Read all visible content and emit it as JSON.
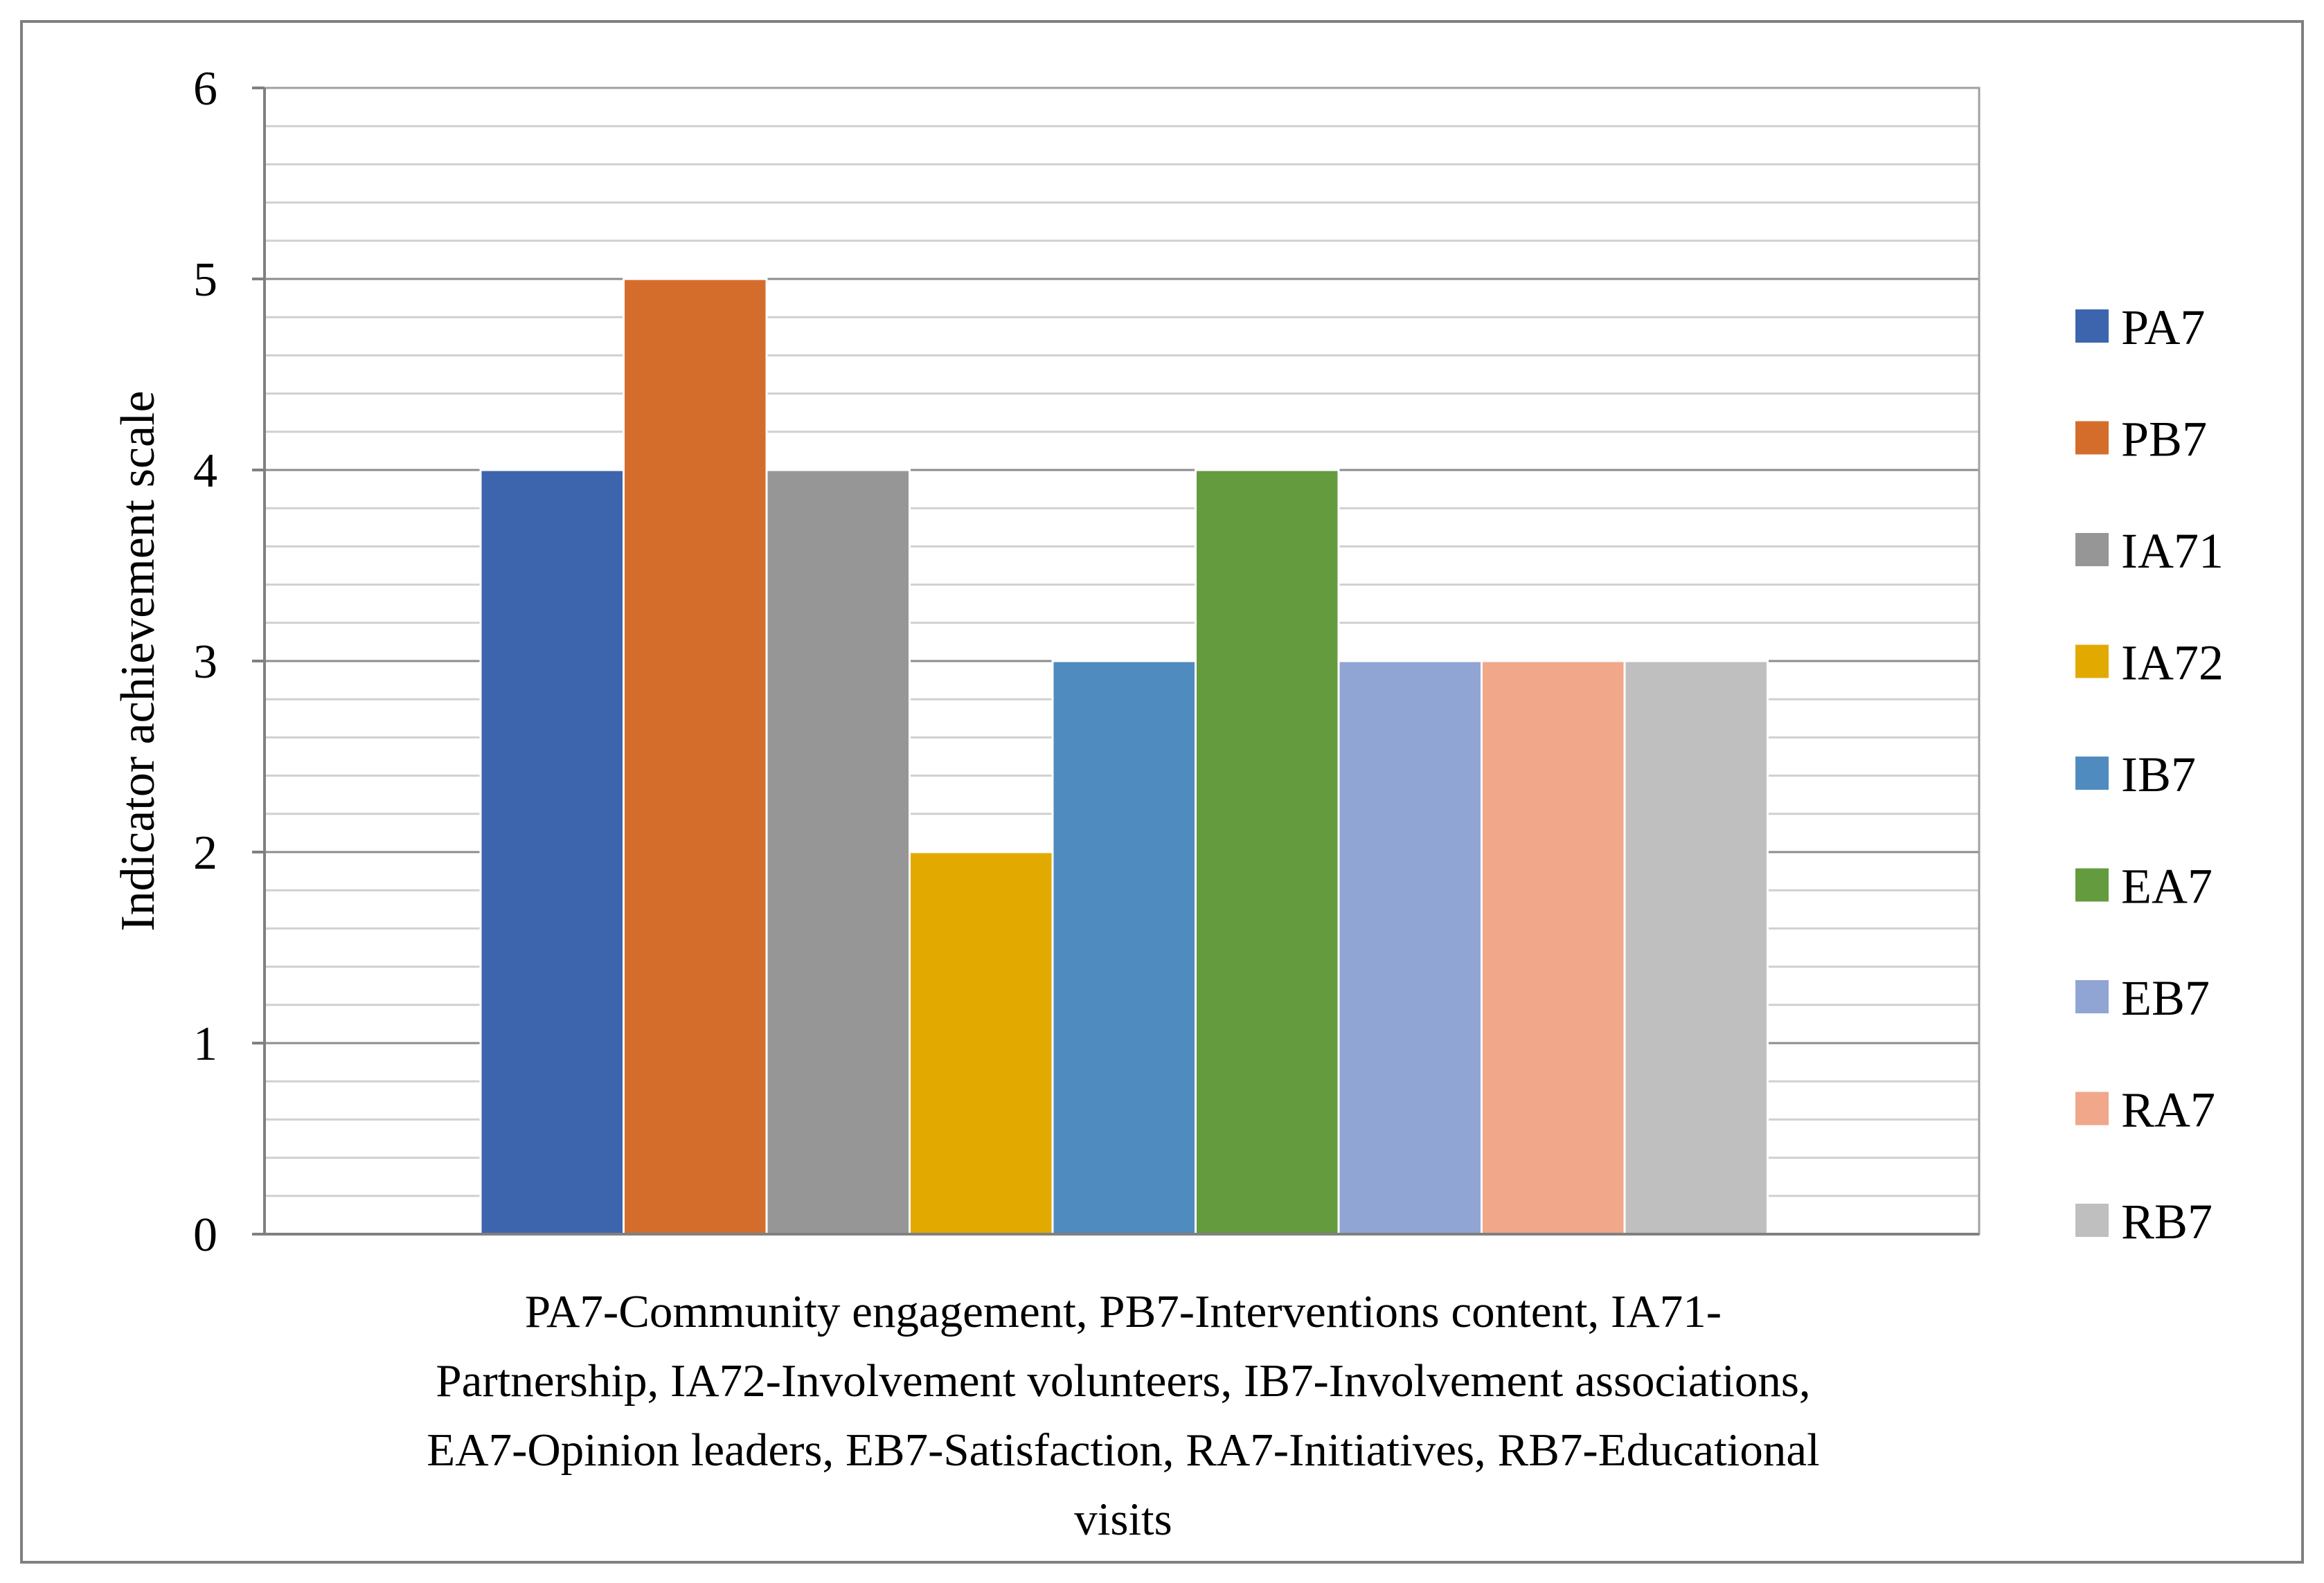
{
  "chart_data": {
    "type": "bar",
    "title": "",
    "ylabel": "Indicator achievement scale",
    "xlabel": "PA7-Community engagement, PB7-Interventions content, IA71-Partnership, IA72-Involvement volunteers, IB7-Involvement associations, EA7-Opinion leaders, EB7-Satisfaction, RA7-Initiatives, RB7-Educational visits",
    "xlabel_lines": [
      "PA7-Community engagement, PB7-Interventions content, IA71-",
      "Partnership, IA72-Involvement volunteers, IB7-Involvement associations,",
      "EA7-Opinion leaders, EB7-Satisfaction, RA7-Initiatives, RB7-Educational",
      "visits"
    ],
    "ylim": [
      0,
      6
    ],
    "y_ticks": [
      "0",
      "1",
      "2",
      "3",
      "4",
      "5",
      "6"
    ],
    "y_minor_step": 0.2,
    "grid": true,
    "legend_position": "right",
    "series": [
      {
        "name": "PA7",
        "value": 4,
        "color": "#3d65ad"
      },
      {
        "name": "PB7",
        "value": 5,
        "color": "#d46d2c"
      },
      {
        "name": "IA71",
        "value": 4,
        "color": "#969696"
      },
      {
        "name": "IA72",
        "value": 2,
        "color": "#e2aa00"
      },
      {
        "name": "IB7",
        "value": 3,
        "color": "#508bbf"
      },
      {
        "name": "EA7",
        "value": 4,
        "color": "#649b3f"
      },
      {
        "name": "EB7",
        "value": 3,
        "color": "#91a5d4"
      },
      {
        "name": "RA7",
        "value": 3,
        "color": "#f0a78a"
      },
      {
        "name": "RB7",
        "value": 3,
        "color": "#bfbfbf"
      }
    ]
  }
}
